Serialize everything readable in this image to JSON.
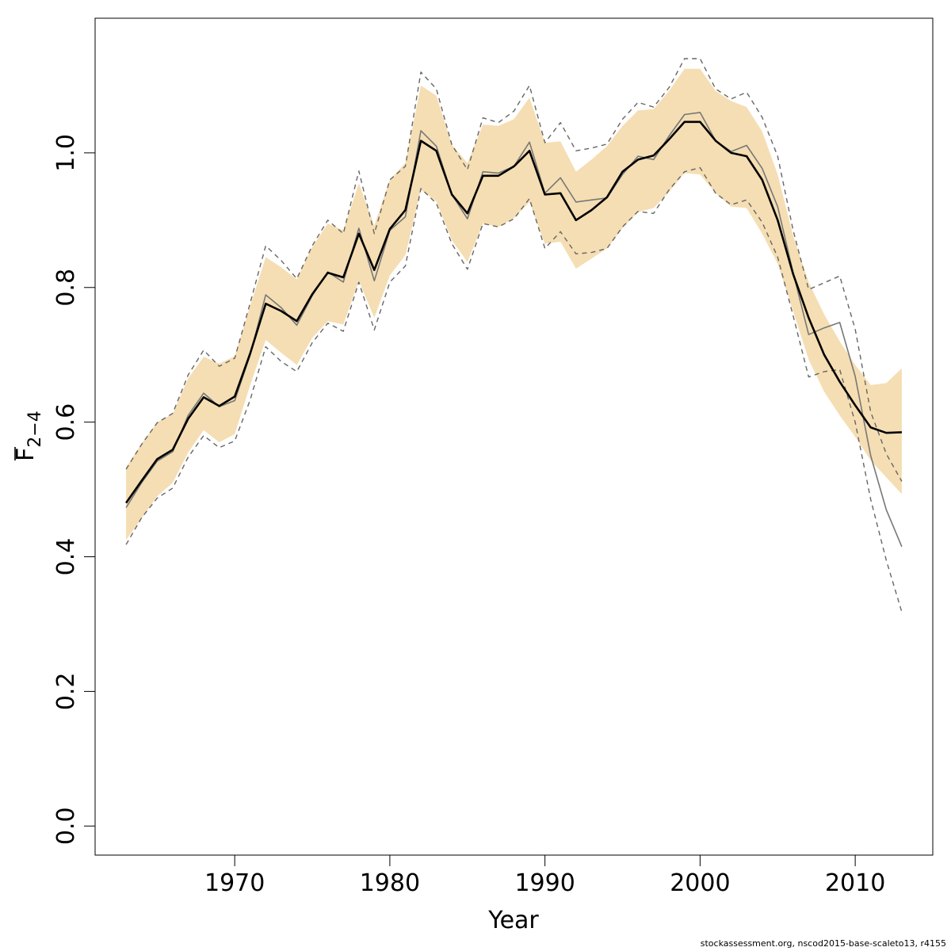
{
  "chart_data": {
    "type": "line",
    "xlabel": "Year",
    "ylabel": "F̅2−4",
    "ylabel_main": "F",
    "ylabel_sub": "2−4",
    "xlim": [
      1961,
      2015
    ],
    "ylim": [
      -0.0432,
      1.2
    ],
    "x_ticks": [
      1970,
      1980,
      1990,
      2000,
      2010
    ],
    "y_ticks": [
      0.0,
      0.2,
      0.4,
      0.6,
      0.8,
      1.0
    ],
    "y_tick_labels": [
      "0.0",
      "0.2",
      "0.4",
      "0.6",
      "0.8",
      "1.0"
    ],
    "grid": false,
    "years": [
      1963,
      1964,
      1965,
      1966,
      1967,
      1968,
      1969,
      1970,
      1971,
      1972,
      1973,
      1974,
      1975,
      1976,
      1977,
      1978,
      1979,
      1980,
      1981,
      1982,
      1983,
      1984,
      1985,
      1986,
      1987,
      1988,
      1989,
      1990,
      1991,
      1992,
      1993,
      1994,
      1995,
      1996,
      1997,
      1998,
      1999,
      2000,
      2001,
      2002,
      2003,
      2004,
      2005,
      2006,
      2007,
      2008,
      2009,
      2010,
      2011,
      2012,
      2013
    ],
    "series": [
      {
        "role": "confidence-band",
        "color": "#f5deb3",
        "lower": [
          0.425,
          0.457,
          0.49,
          0.51,
          0.555,
          0.588,
          0.57,
          0.582,
          0.655,
          0.722,
          0.703,
          0.685,
          0.725,
          0.75,
          0.745,
          0.81,
          0.755,
          0.818,
          0.848,
          0.945,
          0.928,
          0.87,
          0.838,
          0.895,
          0.89,
          0.903,
          0.927,
          0.865,
          0.868,
          0.828,
          0.843,
          0.858,
          0.888,
          0.912,
          0.918,
          0.942,
          0.97,
          0.968,
          0.94,
          0.92,
          0.918,
          0.88,
          0.835,
          0.765,
          0.693,
          0.645,
          0.61,
          0.578,
          0.543,
          0.518,
          0.493
        ],
        "upper": [
          0.533,
          0.568,
          0.6,
          0.612,
          0.665,
          0.697,
          0.687,
          0.698,
          0.773,
          0.845,
          0.83,
          0.812,
          0.86,
          0.895,
          0.885,
          0.955,
          0.892,
          0.96,
          0.985,
          1.1,
          1.085,
          1.012,
          0.985,
          1.042,
          1.04,
          1.05,
          1.082,
          1.015,
          1.017,
          0.972,
          0.99,
          1.01,
          1.04,
          1.063,
          1.065,
          1.092,
          1.125,
          1.125,
          1.092,
          1.077,
          1.068,
          1.032,
          0.968,
          0.877,
          0.808,
          0.76,
          0.72,
          0.685,
          0.655,
          0.658,
          0.68
        ]
      },
      {
        "role": "point-estimate",
        "color": "#000000",
        "values": [
          0.48,
          0.513,
          0.545,
          0.559,
          0.605,
          0.637,
          0.624,
          0.638,
          0.702,
          0.776,
          0.765,
          0.75,
          0.79,
          0.822,
          0.815,
          0.88,
          0.826,
          0.887,
          0.915,
          1.018,
          1.003,
          0.938,
          0.91,
          0.966,
          0.966,
          0.98,
          1.003,
          0.938,
          0.94,
          0.9,
          0.915,
          0.934,
          0.972,
          0.99,
          0.996,
          1.02,
          1.046,
          1.046,
          1.018,
          1.0,
          0.995,
          0.96,
          0.9,
          0.82,
          0.755,
          0.7,
          0.66,
          0.625,
          0.592,
          0.584,
          0.585
        ]
      },
      {
        "role": "alternative-estimate",
        "color": "#777777",
        "values": [
          0.473,
          0.51,
          0.542,
          0.556,
          0.61,
          0.643,
          0.623,
          0.632,
          0.7,
          0.789,
          0.77,
          0.744,
          0.788,
          0.823,
          0.808,
          0.888,
          0.81,
          0.885,
          0.905,
          1.033,
          1.01,
          0.938,
          0.902,
          0.972,
          0.97,
          0.98,
          1.016,
          0.94,
          0.963,
          0.927,
          0.93,
          0.933,
          0.968,
          0.995,
          0.99,
          1.025,
          1.057,
          1.06,
          1.018,
          1.002,
          1.011,
          0.977,
          0.92,
          0.822,
          0.73,
          0.74,
          0.748,
          0.668,
          0.55,
          0.47,
          0.415
        ]
      },
      {
        "role": "alternative-upper",
        "color": "#666666",
        "dash": "dashed",
        "values": [
          0.53,
          0.567,
          0.599,
          0.613,
          0.67,
          0.707,
          0.683,
          0.695,
          0.777,
          0.862,
          0.84,
          0.813,
          0.862,
          0.9,
          0.88,
          0.973,
          0.88,
          0.96,
          0.98,
          1.12,
          1.095,
          1.012,
          0.975,
          1.052,
          1.045,
          1.062,
          1.1,
          1.015,
          1.045,
          1.003,
          1.007,
          1.013,
          1.05,
          1.075,
          1.068,
          1.097,
          1.14,
          1.14,
          1.095,
          1.08,
          1.09,
          1.053,
          0.995,
          0.885,
          0.797,
          0.807,
          0.817,
          0.738,
          0.615,
          0.553,
          0.512
        ]
      },
      {
        "role": "alternative-lower",
        "color": "#666666",
        "dash": "dashed",
        "values": [
          0.418,
          0.458,
          0.487,
          0.502,
          0.548,
          0.58,
          0.562,
          0.572,
          0.633,
          0.712,
          0.69,
          0.675,
          0.718,
          0.747,
          0.735,
          0.808,
          0.737,
          0.808,
          0.832,
          0.947,
          0.925,
          0.865,
          0.827,
          0.895,
          0.89,
          0.902,
          0.932,
          0.858,
          0.883,
          0.85,
          0.852,
          0.858,
          0.89,
          0.913,
          0.91,
          0.945,
          0.972,
          0.978,
          0.94,
          0.923,
          0.93,
          0.897,
          0.845,
          0.758,
          0.667,
          0.675,
          0.678,
          0.6,
          0.485,
          0.395,
          0.318
        ]
      }
    ]
  },
  "footer": "stockassessment.org, nscod2015-base-scaleto13, r4155"
}
